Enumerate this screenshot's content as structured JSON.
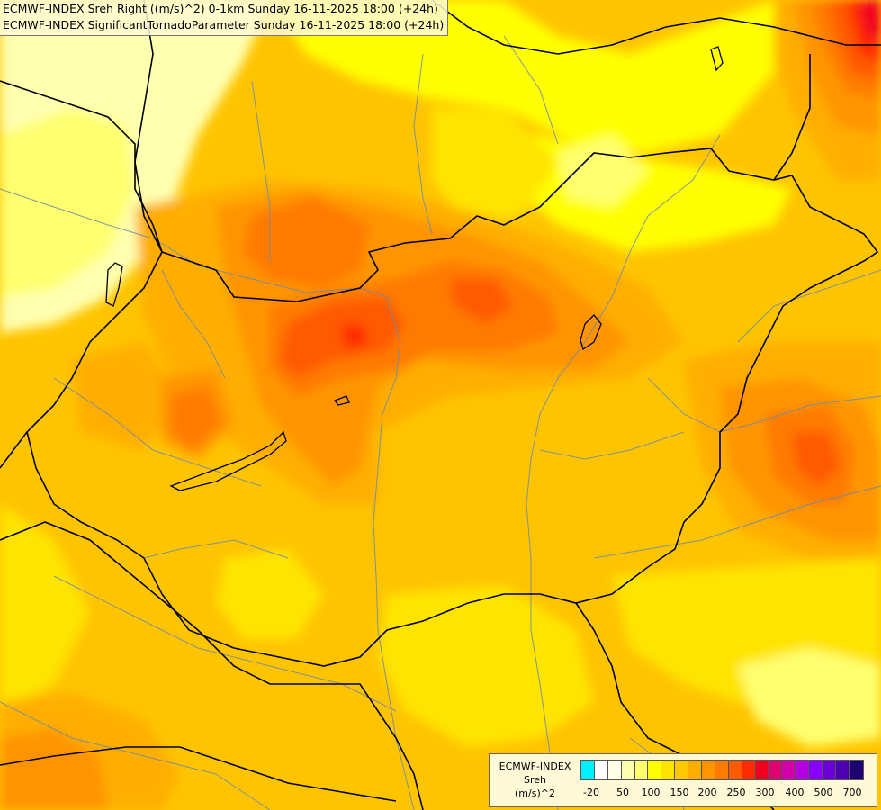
{
  "header": {
    "line1": "ECMWF-INDEX Sreh Right ((m/s)^2) 0-1km Sunday 16-11-2025 18:00 (+24h)",
    "line2": "ECMWF-INDEX SignificantTornadoParameter Sunday 16-11-2025 18:00 (+24h)"
  },
  "legend": {
    "source": "ECMWF-INDEX",
    "variable": "Sreh",
    "unit": "(m/s)^2",
    "colors": [
      "#00f0ff",
      "#ffffff",
      "#ffffe8",
      "#ffffb0",
      "#ffff70",
      "#ffff00",
      "#ffe400",
      "#ffc800",
      "#ffae00",
      "#ff9400",
      "#ff7a00",
      "#ff5a00",
      "#ff2a00",
      "#f00020",
      "#e00070",
      "#d200a8",
      "#b400e0",
      "#8800ff",
      "#6a00d6",
      "#4c00b0",
      "#1e0070"
    ],
    "tick_labels": [
      "-20",
      "50",
      "100",
      "150",
      "200",
      "250",
      "300",
      "400",
      "500",
      "700"
    ]
  },
  "map_colors": {
    "base": "#ffc400",
    "light_yellow": "#ffff70",
    "pale": "#ffffb0",
    "yellow": "#ffff00",
    "gold": "#ffe400",
    "orange": "#ffae00",
    "dark_orange": "#ff9400",
    "red_orange": "#ff7a00",
    "red": "#ff5a00",
    "deep_red": "#ff2a00",
    "crimson": "#f00020"
  }
}
